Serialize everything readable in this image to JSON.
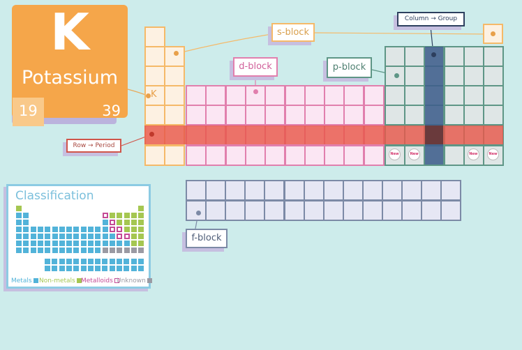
{
  "featured_element": {
    "symbol": "K",
    "name": "Potassium",
    "atomic_number": "19",
    "mass_number": "39",
    "colors": {
      "card": "#f5a64a",
      "numbox": "#f9c98a"
    }
  },
  "main_table": {
    "s_block_cell_marker": "K",
    "new_badge_text": "New",
    "new_badge_columns": [
      0,
      1,
      4,
      5
    ]
  },
  "labels": {
    "s_block": "s-block",
    "d_block": "d-block",
    "p_block": "p-block",
    "f_block": "f-block",
    "row_period": "Row → Period",
    "column_group": "Column → Group"
  },
  "classification": {
    "title": "Classification",
    "legend": [
      {
        "label": "Metals",
        "color": "#52b3d9"
      },
      {
        "label": "Non-metals",
        "color": "#a5c751"
      },
      {
        "label": "Metalloids",
        "color": "#c44a95"
      },
      {
        "label": "Unknown",
        "color": "#9a9aa3"
      }
    ],
    "rows": [
      "N................N",
      "MM..........XNNNNN",
      "MM..........MXNNNN",
      "MMMMMMMMMMMMMXXNNN",
      "MMMMMMMMMMMMMMXXNN",
      "MMMMMMMMMMMMMMMMNN",
      "MMMMMMMMMMMMUUUUUU"
    ],
    "f_rows": [
      "MMMMMMMMMMMMMM",
      "MMMMMMMMMMMMMM"
    ]
  },
  "colors": {
    "background": "#cdeceb",
    "s_block": "#f5b968",
    "d_block": "#e17fad",
    "p_block": "#5e9686",
    "f_block": "#7c8aa6",
    "period_highlight": "#e8584a",
    "group_highlight": "#3f5f8c"
  }
}
